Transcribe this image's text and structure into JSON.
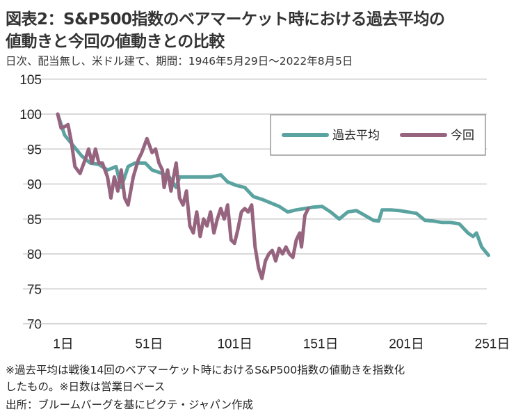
{
  "title_line1": "図表2：S&P500指数のベアマーケット時における過去平均の",
  "title_line2": "値動きと今回の値動きとの比較",
  "subtitle": "日次、配当無し、米ドル建て、期間：1946年5月29日～2022年8月5日",
  "notes": [
    "※過去平均は戦後14回のベアマーケット時におけるS&P500指数の値動きを指数化",
    "したもの。※日数は営業日ベース",
    "出所：ブルームバーグを基にピクテ・ジャパン作成"
  ],
  "chart_data": {
    "type": "line",
    "ylim": [
      70,
      105
    ],
    "yticks": [
      "105",
      "100",
      "95",
      "90",
      "85",
      "80",
      "75",
      "70"
    ],
    "xlim": [
      1,
      253
    ],
    "xticks": [
      {
        "day": 1,
        "label": "1日"
      },
      {
        "day": 51,
        "label": "51日"
      },
      {
        "day": 101,
        "label": "101日"
      },
      {
        "day": 151,
        "label": "151日"
      },
      {
        "day": 201,
        "label": "201日"
      },
      {
        "day": 251,
        "label": "251日"
      }
    ],
    "grid": "horizontal",
    "legend_position": "top-right",
    "series": [
      {
        "name": "過去平均",
        "color": "#5ba3a0",
        "x": [
          1,
          5,
          10,
          15,
          20,
          25,
          30,
          35,
          38,
          42,
          46,
          52,
          56,
          62,
          66,
          70,
          72,
          80,
          90,
          96,
          100,
          105,
          110,
          115,
          120,
          125,
          130,
          135,
          140,
          145,
          150,
          155,
          160,
          165,
          170,
          175,
          180,
          185,
          188,
          190,
          195,
          200,
          205,
          210,
          215,
          220,
          225,
          230,
          235,
          240,
          243,
          245,
          248,
          252
        ],
        "y": [
          100,
          97,
          95.5,
          94,
          93,
          92.8,
          92,
          92.5,
          89.5,
          92.5,
          93,
          93,
          92,
          91.5,
          91,
          89.5,
          91,
          91,
          91,
          91.3,
          90.3,
          89.8,
          89.5,
          88.2,
          87.8,
          87.3,
          86.8,
          86,
          86.3,
          86.5,
          86.7,
          86.8,
          86,
          85,
          86,
          86.2,
          85.5,
          84.8,
          84.7,
          86.3,
          86.3,
          86.2,
          86,
          85.8,
          84.8,
          84.7,
          84.5,
          84.5,
          84.3,
          83,
          82.5,
          83,
          81,
          79.8
        ]
      },
      {
        "name": "今回",
        "color": "#97647f",
        "x": [
          1,
          3,
          5,
          7,
          9,
          11,
          14,
          17,
          19,
          21,
          23,
          25,
          27,
          30,
          32,
          34,
          36,
          38,
          40,
          42,
          45,
          48,
          50,
          53,
          56,
          58,
          60,
          62,
          63,
          65,
          67,
          70,
          72,
          74,
          76,
          78,
          80,
          82,
          84,
          86,
          88,
          90,
          92,
          94,
          96,
          98,
          100,
          102,
          104,
          106,
          108,
          110,
          112,
          114,
          116,
          118,
          120,
          122,
          124,
          126,
          128,
          130,
          132,
          134,
          136,
          138,
          140,
          142,
          143,
          145,
          147
        ],
        "y": [
          100,
          98,
          98.2,
          98.5,
          96,
          92.5,
          91.5,
          93.5,
          95,
          93,
          95,
          93,
          93,
          91,
          88,
          91,
          89,
          92,
          88,
          87,
          91,
          93.5,
          94.5,
          96.5,
          94.5,
          95,
          93,
          92,
          89.5,
          92,
          89,
          93,
          88,
          87,
          89,
          84,
          83,
          86,
          82.5,
          85,
          84,
          86,
          83,
          85,
          86.5,
          85,
          87,
          82,
          81.5,
          83.5,
          86,
          86.5,
          86,
          87,
          81,
          78,
          76.5,
          79,
          80,
          80.5,
          79,
          80.8,
          80,
          81,
          80,
          79.5,
          82,
          83,
          81,
          85.5,
          86.5
        ]
      }
    ]
  }
}
